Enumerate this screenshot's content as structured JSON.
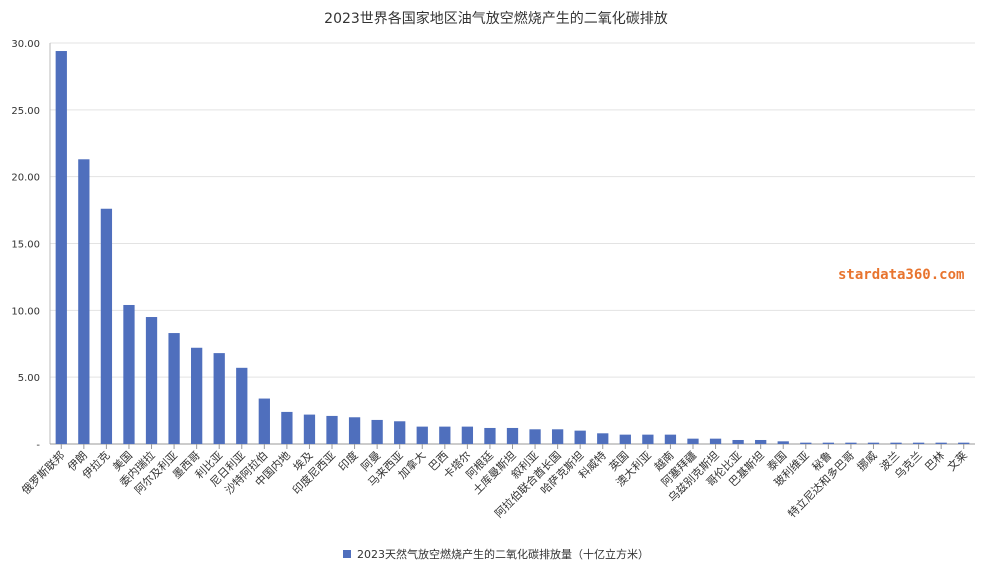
{
  "chart_data": {
    "type": "bar",
    "title": "2023世界各国家地区油气放空燃烧产生的二氧化碳排放",
    "categories": [
      "俄罗斯联邦",
      "伊朗",
      "伊拉克",
      "美国",
      "委内瑞拉",
      "阿尔及利亚",
      "墨西哥",
      "利比亚",
      "尼日利亚",
      "沙特阿拉伯",
      "中国内地",
      "埃及",
      "印度尼西亚",
      "印度",
      "阿曼",
      "马来西亚",
      "加拿大",
      "巴西",
      "卡塔尔",
      "阿根廷",
      "土库曼斯坦",
      "叙利亚",
      "阿拉伯联合酋长国",
      "哈萨克斯坦",
      "科威特",
      "英国",
      "澳大利亚",
      "越南",
      "阿塞拜疆",
      "乌兹别克斯坦",
      "哥伦比亚",
      "巴基斯坦",
      "泰国",
      "玻利维亚",
      "秘鲁",
      "特立尼达和多巴哥",
      "挪威",
      "波兰",
      "乌克兰",
      "巴林",
      "文莱"
    ],
    "series": [
      {
        "name": "2023天然气放空燃烧产生的二氧化碳排放量（十亿立方米）",
        "values": [
          29.4,
          21.3,
          17.6,
          10.4,
          9.5,
          8.3,
          7.2,
          6.8,
          5.7,
          3.4,
          2.4,
          2.2,
          2.1,
          2.0,
          1.8,
          1.7,
          1.3,
          1.3,
          1.3,
          1.2,
          1.2,
          1.1,
          1.1,
          1.0,
          0.8,
          0.7,
          0.7,
          0.7,
          0.4,
          0.4,
          0.3,
          0.3,
          0.2,
          0.1,
          0.1,
          0.1,
          0.1,
          0.1,
          0.1,
          0.1,
          0.1
        ]
      }
    ],
    "yticks": [
      "-",
      "5.00",
      "10.00",
      "15.00",
      "20.00",
      "25.00",
      "30.00"
    ],
    "ylim": [
      0,
      30
    ],
    "grid": true,
    "legend": "bottom",
    "color": "#4f6fbd"
  },
  "watermark": "stardata360.com"
}
